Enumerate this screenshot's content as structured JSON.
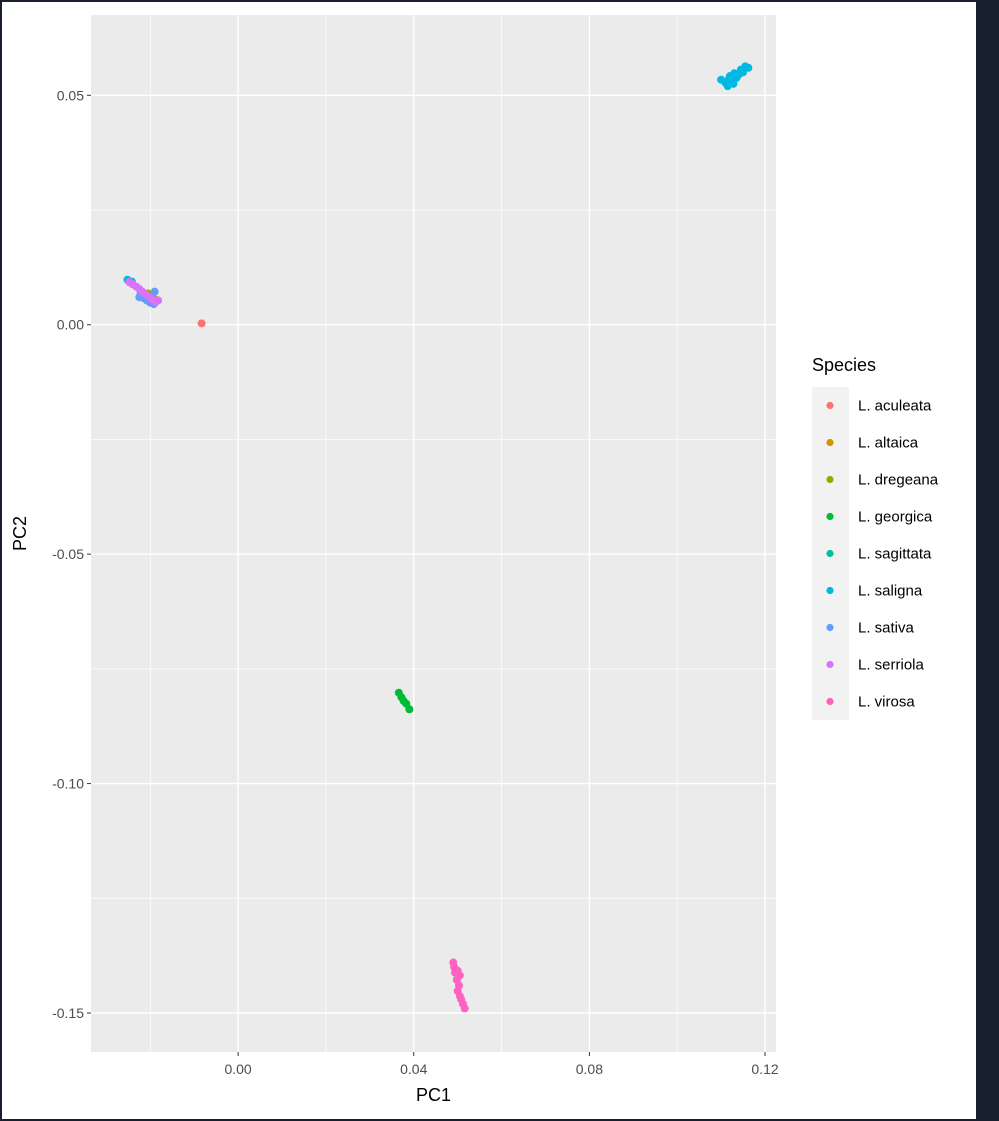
{
  "chart_data": {
    "type": "scatter",
    "xlabel": "PC1",
    "ylabel": "PC2",
    "xlim": [
      -0.0335,
      0.1225
    ],
    "ylim": [
      -0.1585,
      0.0675
    ],
    "x_ticks": [
      0.0,
      0.04,
      0.08,
      0.12
    ],
    "x_tick_labels": [
      "0.00",
      "0.04",
      "0.08",
      "0.12"
    ],
    "x_minor_ticks": [
      -0.02,
      0.02,
      0.06,
      0.1
    ],
    "y_ticks": [
      0.05,
      0.0,
      -0.05,
      -0.1,
      -0.15
    ],
    "y_tick_labels": [
      "0.05",
      "0.00",
      "-0.05",
      "-0.10",
      "-0.15"
    ],
    "y_minor_ticks": [
      0.025,
      -0.025,
      -0.075,
      -0.125
    ],
    "grid": true,
    "legend": {
      "title": "Species",
      "position": "right"
    },
    "series": [
      {
        "name": "L. aculeata",
        "color": "#F8766D",
        "points": [
          [
            -0.0083,
            0.0003
          ]
        ]
      },
      {
        "name": "L. altaica",
        "color": "#D39200",
        "points": [
          [
            -0.0195,
            0.006
          ],
          [
            -0.0188,
            0.0055
          ],
          [
            -0.02,
            0.0065
          ]
        ]
      },
      {
        "name": "L. dregeana",
        "color": "#93AA00",
        "points": [
          [
            -0.0205,
            0.0068
          ],
          [
            -0.0198,
            0.0062
          ]
        ]
      },
      {
        "name": "L. georgica",
        "color": "#00BA38",
        "points": [
          [
            -0.0215,
            0.0068
          ],
          [
            0.0366,
            -0.0802
          ],
          [
            0.0372,
            -0.0812
          ],
          [
            0.0377,
            -0.082
          ],
          [
            0.0383,
            -0.0826
          ],
          [
            0.039,
            -0.0838
          ]
        ]
      },
      {
        "name": "L. sagittata",
        "color": "#00C19F",
        "points": [
          [
            -0.021,
            0.0062
          ]
        ]
      },
      {
        "name": "L. saligna",
        "color": "#00B9E3",
        "points": [
          [
            -0.0252,
            0.0098
          ],
          [
            -0.0242,
            0.0094
          ],
          [
            0.11,
            0.0534
          ],
          [
            0.111,
            0.0527
          ],
          [
            0.1115,
            0.052
          ],
          [
            0.112,
            0.0542
          ],
          [
            0.1125,
            0.053
          ],
          [
            0.113,
            0.0548
          ],
          [
            0.1135,
            0.0538
          ],
          [
            0.114,
            0.0545
          ],
          [
            0.1145,
            0.0556
          ],
          [
            0.115,
            0.055
          ],
          [
            0.1155,
            0.0563
          ],
          [
            0.1162,
            0.056
          ],
          [
            0.1118,
            0.0536
          ],
          [
            0.1128,
            0.0525
          ]
        ]
      },
      {
        "name": "L. sativa",
        "color": "#619CFF",
        "points": [
          [
            -0.0222,
            0.0068
          ],
          [
            -0.0215,
            0.0058
          ],
          [
            -0.0208,
            0.0053
          ],
          [
            -0.02,
            0.0048
          ],
          [
            -0.0192,
            0.0045
          ],
          [
            -0.0185,
            0.0052
          ],
          [
            -0.019,
            0.0072
          ],
          [
            -0.0225,
            0.006
          ]
        ]
      },
      {
        "name": "L. serriola",
        "color": "#DB72FB",
        "points": [
          [
            -0.0248,
            0.0093
          ],
          [
            -0.024,
            0.0088
          ],
          [
            -0.0232,
            0.0083
          ],
          [
            -0.0225,
            0.0078
          ],
          [
            -0.0218,
            0.0072
          ],
          [
            -0.021,
            0.0066
          ],
          [
            -0.0202,
            0.006
          ],
          [
            -0.0195,
            0.0055
          ],
          [
            -0.0188,
            0.005
          ],
          [
            -0.0182,
            0.0053
          ]
        ]
      },
      {
        "name": "L. virosa",
        "color": "#FF61C3",
        "points": [
          [
            0.049,
            -0.139
          ],
          [
            0.0492,
            -0.14
          ],
          [
            0.0494,
            -0.1412
          ],
          [
            0.05,
            -0.1408
          ],
          [
            0.0505,
            -0.1418
          ],
          [
            0.0498,
            -0.1428
          ],
          [
            0.0503,
            -0.144
          ],
          [
            0.05,
            -0.1452
          ],
          [
            0.0505,
            -0.1463
          ],
          [
            0.0508,
            -0.147
          ],
          [
            0.0512,
            -0.148
          ],
          [
            0.0516,
            -0.149
          ]
        ]
      }
    ]
  }
}
